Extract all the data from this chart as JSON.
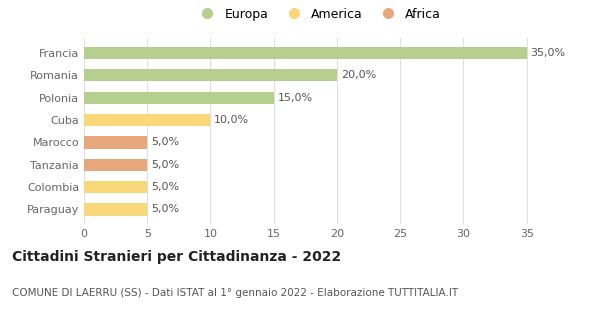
{
  "categories": [
    "Francia",
    "Romania",
    "Polonia",
    "Cuba",
    "Marocco",
    "Tanzania",
    "Colombia",
    "Paraguay"
  ],
  "values": [
    35.0,
    20.0,
    15.0,
    10.0,
    5.0,
    5.0,
    5.0,
    5.0
  ],
  "labels": [
    "35,0%",
    "20,0%",
    "15,0%",
    "10,0%",
    "5,0%",
    "5,0%",
    "5,0%",
    "5,0%"
  ],
  "continent": [
    "Europa",
    "Europa",
    "Europa",
    "America",
    "Africa",
    "Africa",
    "America",
    "America"
  ],
  "bar_colors": [
    "#b5cf8e",
    "#b5cf8e",
    "#b5cf8e",
    "#f9d87a",
    "#e8a87c",
    "#e8a87c",
    "#f9d87a",
    "#f9d87a"
  ],
  "legend_labels": [
    "Europa",
    "America",
    "Africa"
  ],
  "legend_colors": [
    "#b5cf8e",
    "#f9d87a",
    "#e8a87c"
  ],
  "xlim": [
    0,
    37
  ],
  "xticks": [
    0,
    5,
    10,
    15,
    20,
    25,
    30,
    35
  ],
  "title": "Cittadini Stranieri per Cittadinanza - 2022",
  "subtitle": "COMUNE DI LAERRU (SS) - Dati ISTAT al 1° gennaio 2022 - Elaborazione TUTTITALIA.IT",
  "title_fontsize": 10,
  "subtitle_fontsize": 7.5,
  "background_color": "#ffffff",
  "grid_color": "#dddddd",
  "label_fontsize": 8,
  "tick_fontsize": 8,
  "bar_label_fontsize": 8
}
